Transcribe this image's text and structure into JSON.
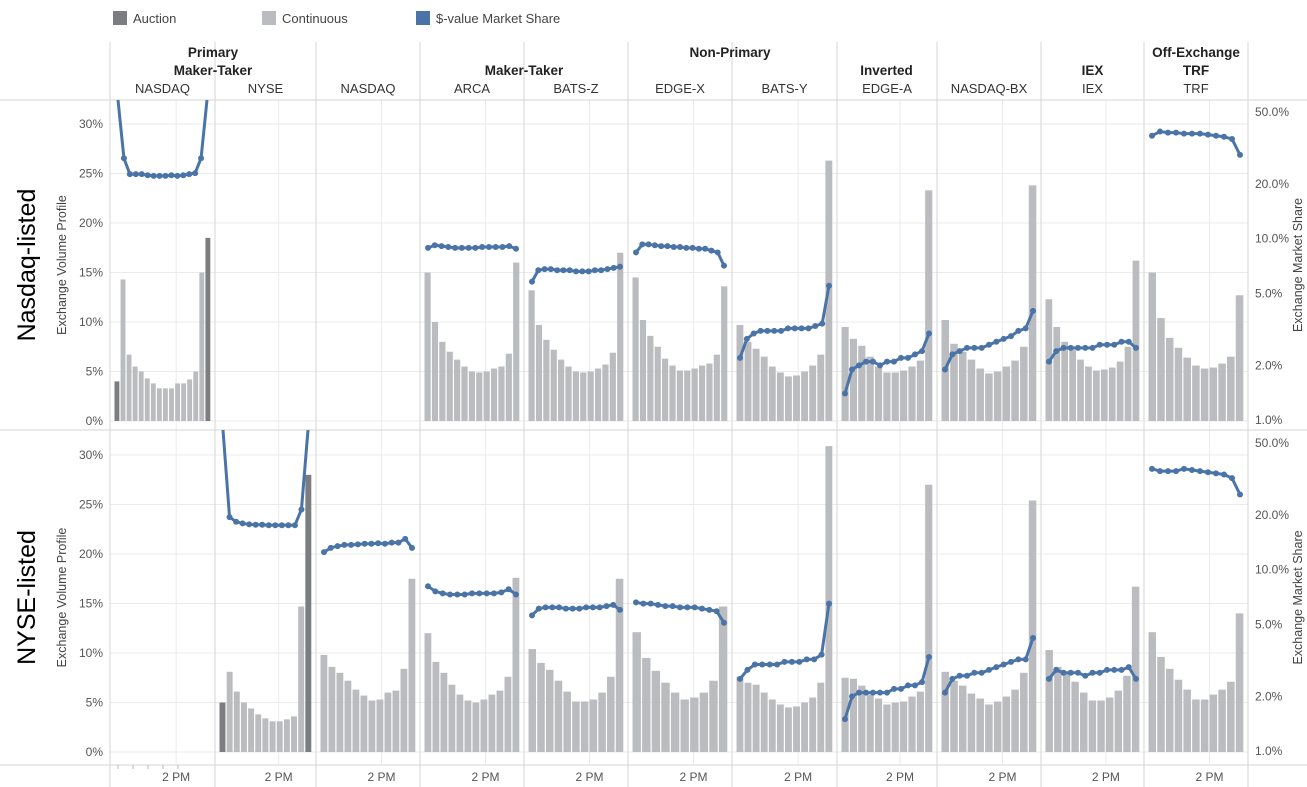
{
  "legend": [
    {
      "label": "Auction",
      "color": "#7c7d80"
    },
    {
      "label": "Continuous",
      "color": "#bbbcbf"
    },
    {
      "label": "$-value Market Share",
      "color": "#4a74a8"
    }
  ],
  "header_groups": [
    {
      "label": "Primary",
      "span": [
        0,
        1
      ]
    },
    {
      "label": "Non-Primary",
      "span": [
        2,
        9
      ]
    },
    {
      "label": "Off-Exchange",
      "span": [
        10,
        10
      ]
    }
  ],
  "subgroups": [
    {
      "label": "Maker-Taker",
      "span": [
        0,
        1
      ]
    },
    {
      "label": "Maker-Taker",
      "span": [
        2,
        5
      ]
    },
    {
      "label": "Inverted",
      "span": [
        6,
        8
      ]
    },
    {
      "label": "IEX",
      "span": [
        9,
        9
      ]
    },
    {
      "label": "TRF",
      "span": [
        10,
        10
      ]
    }
  ],
  "venues": [
    "NASDAQ",
    "NYSE",
    "NASDAQ",
    "ARCA",
    "BATS-Z",
    "EDGE-X",
    "BATS-Y",
    "EDGE-A",
    "NASDAQ-BX",
    "IEX",
    "TRF"
  ],
  "rows": [
    {
      "label": "Nasdaq-listed",
      "left_axis_title": "Exchange Volume Profile",
      "right_axis_title": "Exchange Market Share"
    },
    {
      "label": "NYSE-listed",
      "left_axis_title": "Exchange Volume Profile",
      "right_axis_title": "Exchange Market Share"
    }
  ],
  "x_tick_label": "2 PM",
  "colors": {
    "auction": "#7c7d80",
    "continuous": "#bbbcbf",
    "line": "#4a74a8",
    "grid": "#ebebeb",
    "divider": "#d6d6d6"
  },
  "chart_data": {
    "type": "bar",
    "note_axes": "bars use left axis Exchange Volume Profile (%); line uses right log axis Exchange Market Share (%)",
    "left_axis": {
      "ticks": [
        "0%",
        "5%",
        "10%",
        "15%",
        "20%",
        "25%",
        "30%"
      ],
      "ylim": [
        0,
        32
      ]
    },
    "right_axis": {
      "scale": "log",
      "ticks": [
        "1.0%",
        "2.0%",
        "5.0%",
        "10.0%",
        "20.0%",
        "50.0%"
      ],
      "ylim": [
        1,
        58
      ]
    },
    "x_ticks": [
      "2 PM"
    ],
    "panels": [
      {
        "row": "Nasdaq-listed",
        "venue": "NASDAQ",
        "auction": [
          4,
          null,
          null,
          null,
          null,
          null,
          null,
          null,
          null,
          null,
          null,
          null,
          null,
          null,
          null,
          18.5
        ],
        "continuous": [
          null,
          14.3,
          6.7,
          5.5,
          5,
          4.3,
          3.8,
          3.3,
          3.3,
          3.3,
          3.8,
          3.8,
          4.2,
          5,
          15,
          null
        ],
        "market_share": [
          80,
          27.8,
          22.7,
          22.7,
          22.7,
          22.4,
          22.2,
          22.2,
          22.2,
          22.4,
          22.2,
          22.4,
          22.7,
          23.0,
          27.8,
          80
        ]
      },
      {
        "row": "Nasdaq-listed",
        "venue": "NYSE",
        "auction": [],
        "continuous": [],
        "market_share": []
      },
      {
        "row": "Nasdaq-listed",
        "venue": "NASDAQ",
        "auction": [],
        "continuous": [],
        "market_share": []
      },
      {
        "row": "Nasdaq-listed",
        "venue": "ARCA",
        "continuous": [
          15,
          10,
          8,
          7,
          6.2,
          5.5,
          5,
          4.9,
          5,
          5.3,
          5.5,
          6.8,
          16
        ],
        "market_share": [
          8.9,
          9.2,
          9.1,
          9.0,
          8.9,
          8.9,
          8.9,
          8.9,
          9.0,
          9.0,
          9.0,
          9.0,
          9.1,
          8.8
        ]
      },
      {
        "row": "Nasdaq-listed",
        "venue": "BATS-Z",
        "continuous": [
          13.2,
          9.7,
          8.2,
          7.2,
          6.2,
          5.5,
          5,
          4.9,
          5,
          5.3,
          5.7,
          6.9,
          17
        ],
        "market_share": [
          5.8,
          6.7,
          6.8,
          6.8,
          6.7,
          6.7,
          6.7,
          6.6,
          6.6,
          6.6,
          6.7,
          6.7,
          6.8,
          6.9,
          7.0
        ]
      },
      {
        "row": "Nasdaq-listed",
        "venue": "EDGE-X",
        "continuous": [
          14.5,
          10.2,
          8.6,
          7.5,
          6.3,
          5.6,
          5.1,
          5.1,
          5.3,
          5.6,
          5.8,
          6.7,
          13.6
        ],
        "market_share": [
          8.4,
          9.3,
          9.3,
          9.2,
          9.1,
          9.1,
          9.0,
          9.0,
          8.9,
          8.9,
          8.8,
          8.8,
          8.6,
          8.4,
          7.1
        ]
      },
      {
        "row": "Nasdaq-listed",
        "venue": "BATS-Y",
        "continuous": [
          9.7,
          8,
          7.3,
          6.5,
          5.5,
          4.9,
          4.5,
          4.6,
          5,
          5.6,
          6.7,
          26.3
        ],
        "market_share": [
          2.2,
          2.8,
          3.0,
          3.1,
          3.1,
          3.1,
          3.1,
          3.2,
          3.2,
          3.2,
          3.2,
          3.3,
          3.4,
          5.5
        ]
      },
      {
        "row": "Nasdaq-listed",
        "venue": "EDGE-A",
        "continuous": [
          9.5,
          8.3,
          7.6,
          6.5,
          5.5,
          4.9,
          4.9,
          5.1,
          5.5,
          6.1,
          23.3
        ],
        "market_share": [
          1.4,
          1.9,
          2.0,
          2.1,
          2.1,
          2.0,
          2.1,
          2.1,
          2.2,
          2.2,
          2.3,
          2.4,
          3.0
        ]
      },
      {
        "row": "Nasdaq-listed",
        "venue": "NASDAQ-BX",
        "continuous": [
          10.2,
          7.8,
          7,
          6.2,
          5.3,
          4.8,
          5,
          5.5,
          6.1,
          7.5,
          23.8
        ],
        "market_share": [
          1.9,
          2.3,
          2.4,
          2.5,
          2.5,
          2.5,
          2.6,
          2.7,
          2.8,
          2.9,
          3.1,
          3.2,
          4.0
        ]
      },
      {
        "row": "Nasdaq-listed",
        "venue": "IEX",
        "continuous": [
          12.3,
          9.5,
          8,
          7.2,
          6.2,
          5.5,
          5.1,
          5.2,
          5.4,
          6,
          7.5,
          16.2
        ],
        "market_share": [
          2.1,
          2.4,
          2.5,
          2.5,
          2.5,
          2.5,
          2.5,
          2.6,
          2.6,
          2.6,
          2.7,
          2.7,
          2.5
        ]
      },
      {
        "row": "Nasdaq-listed",
        "venue": "TRF",
        "continuous": [
          15,
          10.4,
          8.4,
          7.4,
          6.4,
          5.6,
          5.3,
          5.4,
          5.8,
          6.5,
          12.7
        ],
        "market_share": [
          37,
          39,
          38.5,
          38.5,
          38,
          38,
          38,
          37.5,
          37,
          36.5,
          35.5,
          29
        ]
      },
      {
        "row": "NYSE-listed",
        "venue": "NASDAQ",
        "auction": [],
        "continuous": [],
        "market_share": []
      },
      {
        "row": "NYSE-listed",
        "venue": "NYSE",
        "auction": [
          5,
          null,
          null,
          null,
          null,
          null,
          null,
          null,
          null,
          null,
          null,
          null,
          28
        ],
        "continuous": [
          null,
          8.1,
          6.1,
          5,
          4.4,
          3.8,
          3.4,
          3.1,
          3.1,
          3.3,
          3.6,
          14.7,
          null
        ],
        "market_share": [
          80,
          19.5,
          18.4,
          18.0,
          17.8,
          17.7,
          17.7,
          17.6,
          17.6,
          17.6,
          17.6,
          17.6,
          21.5,
          80
        ]
      },
      {
        "row": "NYSE-listed",
        "venue": "NASDAQ",
        "continuous": [
          9.8,
          8.6,
          8,
          7.2,
          6.3,
          5.7,
          5.2,
          5.3,
          6,
          6.2,
          8.4,
          17.5
        ],
        "market_share": [
          12.5,
          13.2,
          13.5,
          13.7,
          13.7,
          13.8,
          13.9,
          13.9,
          14.0,
          13.9,
          14.1,
          14.1,
          14.8,
          13.2
        ]
      },
      {
        "row": "NYSE-listed",
        "venue": "ARCA",
        "continuous": [
          12,
          9.1,
          8,
          6.8,
          5.8,
          5.2,
          5,
          5.3,
          5.8,
          6.2,
          7.6,
          17.6
        ],
        "market_share": [
          8.1,
          7.6,
          7.4,
          7.3,
          7.3,
          7.3,
          7.4,
          7.4,
          7.4,
          7.4,
          7.5,
          7.8,
          7.3
        ]
      },
      {
        "row": "NYSE-listed",
        "venue": "BATS-Z",
        "continuous": [
          10.4,
          9,
          8.3,
          7.2,
          6.1,
          5.1,
          5.1,
          5.3,
          6,
          7.6,
          17.5
        ],
        "market_share": [
          5.6,
          6.1,
          6.2,
          6.2,
          6.2,
          6.1,
          6.1,
          6.1,
          6.2,
          6.2,
          6.2,
          6.3,
          6.4,
          6.0
        ]
      },
      {
        "row": "NYSE-listed",
        "venue": "EDGE-X",
        "continuous": [
          12.1,
          9.5,
          8.2,
          7,
          6,
          5.3,
          5.5,
          6,
          7.2,
          14.7
        ],
        "market_share": [
          6.6,
          6.5,
          6.5,
          6.4,
          6.3,
          6.3,
          6.2,
          6.2,
          6.2,
          6.1,
          6.0,
          5.9,
          5.1
        ]
      },
      {
        "row": "NYSE-listed",
        "venue": "BATS-Y",
        "continuous": [
          7.6,
          7,
          6.8,
          6,
          5.3,
          4.8,
          4.5,
          4.6,
          5,
          5.5,
          7,
          30.9
        ],
        "market_share": [
          2.5,
          2.8,
          3.0,
          3.0,
          3.0,
          3.0,
          3.1,
          3.1,
          3.1,
          3.2,
          3.2,
          3.4,
          6.5
        ]
      },
      {
        "row": "NYSE-listed",
        "venue": "EDGE-A",
        "continuous": [
          7.5,
          7.4,
          6.7,
          5.8,
          5.4,
          4.8,
          5,
          5.1,
          5.6,
          6.1,
          27
        ],
        "market_share": [
          1.5,
          2.0,
          2.1,
          2.1,
          2.1,
          2.1,
          2.1,
          2.2,
          2.2,
          2.3,
          2.3,
          2.4,
          3.3
        ]
      },
      {
        "row": "NYSE-listed",
        "venue": "NASDAQ-BX",
        "continuous": [
          8.1,
          7.2,
          6.7,
          5.9,
          5.4,
          4.8,
          5.1,
          5.6,
          6.3,
          8,
          25.4
        ],
        "market_share": [
          2.1,
          2.5,
          2.6,
          2.6,
          2.7,
          2.7,
          2.8,
          2.9,
          3.0,
          3.1,
          3.2,
          3.2,
          4.2
        ]
      },
      {
        "row": "NYSE-listed",
        "venue": "IEX",
        "continuous": [
          10.3,
          8.6,
          8,
          7.1,
          6,
          5.2,
          5.2,
          5.5,
          6.2,
          7.7,
          16.7
        ],
        "market_share": [
          2.5,
          2.8,
          2.7,
          2.7,
          2.7,
          2.6,
          2.7,
          2.7,
          2.8,
          2.8,
          2.8,
          2.9,
          2.5
        ]
      },
      {
        "row": "NYSE-listed",
        "venue": "TRF",
        "continuous": [
          12.1,
          9.6,
          8.4,
          7.3,
          6.3,
          5.3,
          5.3,
          5.8,
          6.3,
          7.1,
          14
        ],
        "market_share": [
          36,
          35,
          35,
          35,
          36,
          35.5,
          35,
          34.5,
          34,
          33.5,
          32,
          26
        ]
      }
    ]
  }
}
